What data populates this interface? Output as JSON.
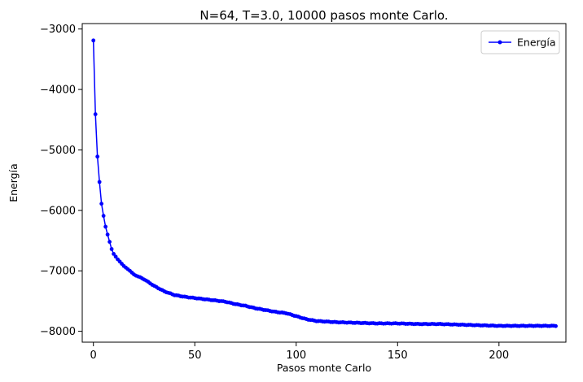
{
  "chart_data": {
    "type": "line",
    "title": "N=64, T=3.0, 10000 pasos monte Carlo.",
    "xlabel": "Pasos monte Carlo",
    "ylabel": "Energía",
    "xlim": [
      -5.5,
      233
    ],
    "ylim": [
      -8180,
      -2910
    ],
    "xticks": [
      0,
      50,
      100,
      150,
      200
    ],
    "yticks": [
      -3000,
      -4000,
      -5000,
      -6000,
      -7000,
      -8000
    ],
    "grid": false,
    "legend_position": "top-right",
    "series": [
      {
        "name": "Energía",
        "color": "#0000ff",
        "marker": "circle",
        "anchors": [
          [
            0,
            -3190
          ],
          [
            1,
            -4410
          ],
          [
            2,
            -5110
          ],
          [
            3,
            -5530
          ],
          [
            4,
            -5890
          ],
          [
            5,
            -6090
          ],
          [
            6,
            -6270
          ],
          [
            7,
            -6400
          ],
          [
            8,
            -6520
          ],
          [
            9,
            -6640
          ],
          [
            10,
            -6720
          ],
          [
            12,
            -6810
          ],
          [
            15,
            -6920
          ],
          [
            18,
            -7000
          ],
          [
            20,
            -7060
          ],
          [
            25,
            -7140
          ],
          [
            30,
            -7250
          ],
          [
            35,
            -7340
          ],
          [
            40,
            -7400
          ],
          [
            45,
            -7430
          ],
          [
            50,
            -7450
          ],
          [
            55,
            -7470
          ],
          [
            60,
            -7490
          ],
          [
            65,
            -7510
          ],
          [
            70,
            -7550
          ],
          [
            75,
            -7580
          ],
          [
            80,
            -7620
          ],
          [
            85,
            -7650
          ],
          [
            90,
            -7680
          ],
          [
            95,
            -7700
          ],
          [
            100,
            -7750
          ],
          [
            105,
            -7800
          ],
          [
            110,
            -7830
          ],
          [
            115,
            -7840
          ],
          [
            120,
            -7850
          ],
          [
            130,
            -7860
          ],
          [
            140,
            -7870
          ],
          [
            150,
            -7870
          ],
          [
            160,
            -7880
          ],
          [
            170,
            -7880
          ],
          [
            180,
            -7890
          ],
          [
            190,
            -7900
          ],
          [
            200,
            -7910
          ],
          [
            210,
            -7910
          ],
          [
            220,
            -7910
          ],
          [
            228,
            -7910
          ]
        ],
        "n_points": 229
      }
    ]
  }
}
